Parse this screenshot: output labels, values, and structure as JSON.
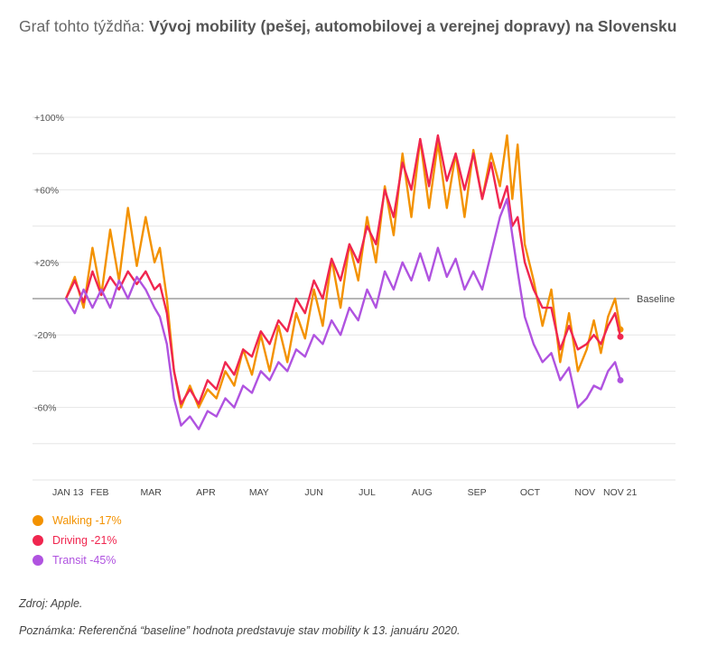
{
  "header": {
    "title_prefix": "Graf tohto týždňa: ",
    "title_bold": "Vývoj mobility (pešej, automobilovej a verejnej dopravy) na Slovensku"
  },
  "footer": {
    "source": "Zdroj: Apple.",
    "note": "Poznámka: Referenčná “baseline” hodnota predstavuje stav mobility k 13. januáru 2020."
  },
  "chart_data": {
    "type": "line",
    "title": "",
    "xlabel": "",
    "ylabel": "",
    "x_start": "2020-01-13",
    "x_end": "2020-11-21",
    "ylim": [
      -100,
      100
    ],
    "yticks": [
      {
        "value": 100,
        "label": "+100%"
      },
      {
        "value": 60,
        "label": "+60%"
      },
      {
        "value": 20,
        "label": "+20%"
      },
      {
        "value": -20,
        "label": "-20%"
      },
      {
        "value": -60,
        "label": "-60%"
      }
    ],
    "xticks": [
      {
        "date": "2020-01-13",
        "label": "JAN 13"
      },
      {
        "date": "2020-02-01",
        "label": "FEB"
      },
      {
        "date": "2020-03-01",
        "label": "MAR"
      },
      {
        "date": "2020-04-01",
        "label": "APR"
      },
      {
        "date": "2020-05-01",
        "label": "MAY"
      },
      {
        "date": "2020-06-01",
        "label": "JUN"
      },
      {
        "date": "2020-07-01",
        "label": "JUL"
      },
      {
        "date": "2020-08-01",
        "label": "AUG"
      },
      {
        "date": "2020-09-01",
        "label": "SEP"
      },
      {
        "date": "2020-10-01",
        "label": "OCT"
      },
      {
        "date": "2020-11-01",
        "label": "NOV"
      },
      {
        "date": "2020-11-21",
        "label": "NOV 21"
      }
    ],
    "baseline": {
      "value": 0,
      "label": "Baseline"
    },
    "grid": true,
    "legend_position": "bottom-left",
    "series": [
      {
        "name": "Walking -17%",
        "color": "#F39200",
        "points": [
          [
            "2020-01-13",
            0
          ],
          [
            "2020-01-18",
            12
          ],
          [
            "2020-01-23",
            -5
          ],
          [
            "2020-01-28",
            28
          ],
          [
            "2020-02-02",
            2
          ],
          [
            "2020-02-07",
            38
          ],
          [
            "2020-02-12",
            10
          ],
          [
            "2020-02-17",
            50
          ],
          [
            "2020-02-22",
            18
          ],
          [
            "2020-02-27",
            45
          ],
          [
            "2020-03-03",
            20
          ],
          [
            "2020-03-06",
            28
          ],
          [
            "2020-03-10",
            0
          ],
          [
            "2020-03-14",
            -40
          ],
          [
            "2020-03-18",
            -60
          ],
          [
            "2020-03-23",
            -48
          ],
          [
            "2020-03-28",
            -60
          ],
          [
            "2020-04-02",
            -50
          ],
          [
            "2020-04-07",
            -55
          ],
          [
            "2020-04-12",
            -40
          ],
          [
            "2020-04-17",
            -48
          ],
          [
            "2020-04-22",
            -28
          ],
          [
            "2020-04-27",
            -42
          ],
          [
            "2020-05-02",
            -20
          ],
          [
            "2020-05-07",
            -40
          ],
          [
            "2020-05-12",
            -15
          ],
          [
            "2020-05-17",
            -35
          ],
          [
            "2020-05-22",
            -8
          ],
          [
            "2020-05-27",
            -22
          ],
          [
            "2020-06-01",
            5
          ],
          [
            "2020-06-06",
            -15
          ],
          [
            "2020-06-11",
            22
          ],
          [
            "2020-06-16",
            -5
          ],
          [
            "2020-06-21",
            30
          ],
          [
            "2020-06-26",
            10
          ],
          [
            "2020-07-01",
            45
          ],
          [
            "2020-07-06",
            20
          ],
          [
            "2020-07-11",
            62
          ],
          [
            "2020-07-16",
            35
          ],
          [
            "2020-07-21",
            80
          ],
          [
            "2020-07-26",
            45
          ],
          [
            "2020-07-31",
            88
          ],
          [
            "2020-08-05",
            50
          ],
          [
            "2020-08-10",
            86
          ],
          [
            "2020-08-15",
            50
          ],
          [
            "2020-08-20",
            80
          ],
          [
            "2020-08-25",
            45
          ],
          [
            "2020-08-30",
            82
          ],
          [
            "2020-09-04",
            55
          ],
          [
            "2020-09-09",
            80
          ],
          [
            "2020-09-14",
            62
          ],
          [
            "2020-09-18",
            90
          ],
          [
            "2020-09-21",
            55
          ],
          [
            "2020-09-24",
            85
          ],
          [
            "2020-09-28",
            30
          ],
          [
            "2020-10-03",
            10
          ],
          [
            "2020-10-08",
            -15
          ],
          [
            "2020-10-13",
            5
          ],
          [
            "2020-10-18",
            -35
          ],
          [
            "2020-10-23",
            -8
          ],
          [
            "2020-10-28",
            -40
          ],
          [
            "2020-11-02",
            -28
          ],
          [
            "2020-11-06",
            -12
          ],
          [
            "2020-11-10",
            -30
          ],
          [
            "2020-11-14",
            -10
          ],
          [
            "2020-11-18",
            0
          ],
          [
            "2020-11-21",
            -17
          ]
        ]
      },
      {
        "name": "Driving -21%",
        "color": "#F0264F",
        "points": [
          [
            "2020-01-13",
            0
          ],
          [
            "2020-01-18",
            10
          ],
          [
            "2020-01-23",
            -2
          ],
          [
            "2020-01-28",
            15
          ],
          [
            "2020-02-02",
            2
          ],
          [
            "2020-02-07",
            12
          ],
          [
            "2020-02-12",
            5
          ],
          [
            "2020-02-17",
            15
          ],
          [
            "2020-02-22",
            8
          ],
          [
            "2020-02-27",
            15
          ],
          [
            "2020-03-03",
            5
          ],
          [
            "2020-03-06",
            8
          ],
          [
            "2020-03-10",
            -8
          ],
          [
            "2020-03-14",
            -40
          ],
          [
            "2020-03-18",
            -58
          ],
          [
            "2020-03-23",
            -50
          ],
          [
            "2020-03-28",
            -58
          ],
          [
            "2020-04-02",
            -45
          ],
          [
            "2020-04-07",
            -50
          ],
          [
            "2020-04-12",
            -35
          ],
          [
            "2020-04-17",
            -42
          ],
          [
            "2020-04-22",
            -28
          ],
          [
            "2020-04-27",
            -32
          ],
          [
            "2020-05-02",
            -18
          ],
          [
            "2020-05-07",
            -25
          ],
          [
            "2020-05-12",
            -12
          ],
          [
            "2020-05-17",
            -18
          ],
          [
            "2020-05-22",
            0
          ],
          [
            "2020-05-27",
            -8
          ],
          [
            "2020-06-01",
            10
          ],
          [
            "2020-06-06",
            0
          ],
          [
            "2020-06-11",
            22
          ],
          [
            "2020-06-16",
            10
          ],
          [
            "2020-06-21",
            30
          ],
          [
            "2020-06-26",
            20
          ],
          [
            "2020-07-01",
            40
          ],
          [
            "2020-07-06",
            30
          ],
          [
            "2020-07-11",
            60
          ],
          [
            "2020-07-16",
            45
          ],
          [
            "2020-07-21",
            75
          ],
          [
            "2020-07-26",
            60
          ],
          [
            "2020-07-31",
            88
          ],
          [
            "2020-08-05",
            62
          ],
          [
            "2020-08-10",
            90
          ],
          [
            "2020-08-15",
            65
          ],
          [
            "2020-08-20",
            80
          ],
          [
            "2020-08-25",
            60
          ],
          [
            "2020-08-30",
            80
          ],
          [
            "2020-09-04",
            55
          ],
          [
            "2020-09-09",
            75
          ],
          [
            "2020-09-14",
            50
          ],
          [
            "2020-09-18",
            62
          ],
          [
            "2020-09-21",
            40
          ],
          [
            "2020-09-24",
            45
          ],
          [
            "2020-09-28",
            20
          ],
          [
            "2020-10-03",
            5
          ],
          [
            "2020-10-08",
            -5
          ],
          [
            "2020-10-13",
            -5
          ],
          [
            "2020-10-18",
            -28
          ],
          [
            "2020-10-23",
            -15
          ],
          [
            "2020-10-28",
            -28
          ],
          [
            "2020-11-02",
            -25
          ],
          [
            "2020-11-06",
            -20
          ],
          [
            "2020-11-10",
            -25
          ],
          [
            "2020-11-14",
            -15
          ],
          [
            "2020-11-18",
            -8
          ],
          [
            "2020-11-21",
            -21
          ]
        ]
      },
      {
        "name": "Transit -45%",
        "color": "#B053E0",
        "points": [
          [
            "2020-01-13",
            0
          ],
          [
            "2020-01-18",
            -8
          ],
          [
            "2020-01-23",
            5
          ],
          [
            "2020-01-28",
            -5
          ],
          [
            "2020-02-02",
            5
          ],
          [
            "2020-02-07",
            -5
          ],
          [
            "2020-02-12",
            10
          ],
          [
            "2020-02-17",
            0
          ],
          [
            "2020-02-22",
            12
          ],
          [
            "2020-02-27",
            5
          ],
          [
            "2020-03-03",
            -5
          ],
          [
            "2020-03-06",
            -10
          ],
          [
            "2020-03-10",
            -25
          ],
          [
            "2020-03-14",
            -55
          ],
          [
            "2020-03-18",
            -70
          ],
          [
            "2020-03-23",
            -65
          ],
          [
            "2020-03-28",
            -72
          ],
          [
            "2020-04-02",
            -62
          ],
          [
            "2020-04-07",
            -65
          ],
          [
            "2020-04-12",
            -55
          ],
          [
            "2020-04-17",
            -60
          ],
          [
            "2020-04-22",
            -48
          ],
          [
            "2020-04-27",
            -52
          ],
          [
            "2020-05-02",
            -40
          ],
          [
            "2020-05-07",
            -45
          ],
          [
            "2020-05-12",
            -35
          ],
          [
            "2020-05-17",
            -40
          ],
          [
            "2020-05-22",
            -28
          ],
          [
            "2020-05-27",
            -32
          ],
          [
            "2020-06-01",
            -20
          ],
          [
            "2020-06-06",
            -25
          ],
          [
            "2020-06-11",
            -12
          ],
          [
            "2020-06-16",
            -20
          ],
          [
            "2020-06-21",
            -5
          ],
          [
            "2020-06-26",
            -12
          ],
          [
            "2020-07-01",
            5
          ],
          [
            "2020-07-06",
            -5
          ],
          [
            "2020-07-11",
            15
          ],
          [
            "2020-07-16",
            5
          ],
          [
            "2020-07-21",
            20
          ],
          [
            "2020-07-26",
            10
          ],
          [
            "2020-07-31",
            25
          ],
          [
            "2020-08-05",
            10
          ],
          [
            "2020-08-10",
            28
          ],
          [
            "2020-08-15",
            12
          ],
          [
            "2020-08-20",
            22
          ],
          [
            "2020-08-25",
            5
          ],
          [
            "2020-08-30",
            15
          ],
          [
            "2020-09-04",
            5
          ],
          [
            "2020-09-09",
            25
          ],
          [
            "2020-09-14",
            45
          ],
          [
            "2020-09-18",
            55
          ],
          [
            "2020-09-21",
            35
          ],
          [
            "2020-09-24",
            15
          ],
          [
            "2020-09-28",
            -10
          ],
          [
            "2020-10-03",
            -25
          ],
          [
            "2020-10-08",
            -35
          ],
          [
            "2020-10-13",
            -30
          ],
          [
            "2020-10-18",
            -45
          ],
          [
            "2020-10-23",
            -38
          ],
          [
            "2020-10-28",
            -60
          ],
          [
            "2020-11-02",
            -55
          ],
          [
            "2020-11-06",
            -48
          ],
          [
            "2020-11-10",
            -50
          ],
          [
            "2020-11-14",
            -40
          ],
          [
            "2020-11-18",
            -35
          ],
          [
            "2020-11-21",
            -45
          ]
        ]
      }
    ]
  }
}
